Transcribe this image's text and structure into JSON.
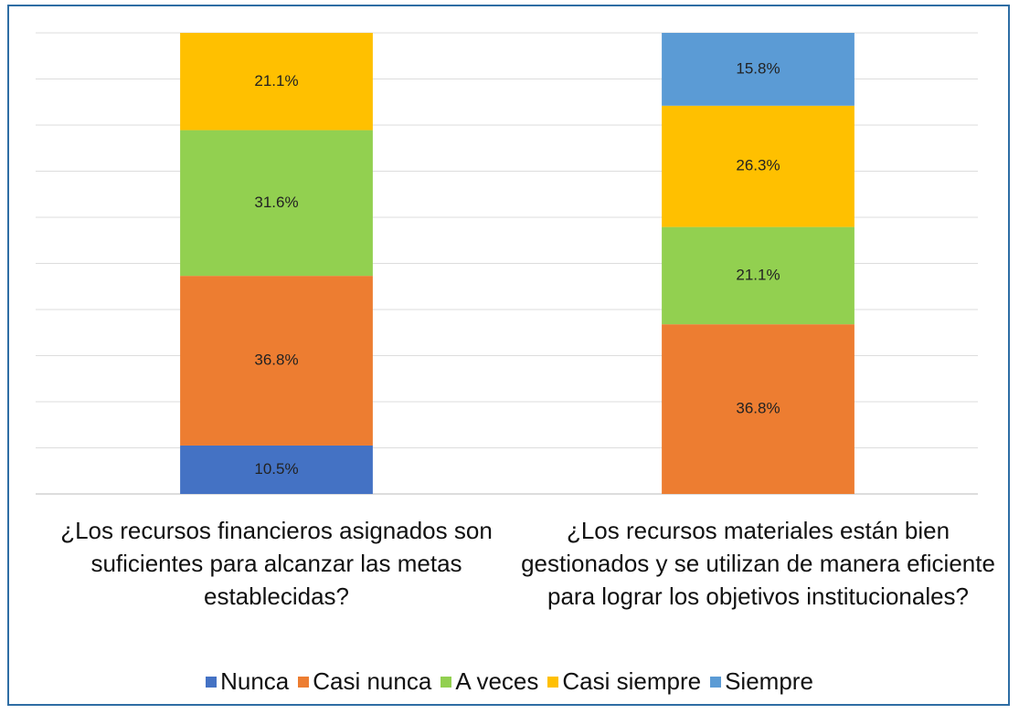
{
  "chart_data": {
    "type": "stacked_bar",
    "categories": [
      "¿Los recursos financieros asignados son suficientes para alcanzar las metas establecidas?",
      "¿Los recursos materiales están bien gestionados y se utilizan de manera eficiente para lograr los objetivos institucionales?"
    ],
    "series": [
      {
        "name": "Nunca",
        "color": "#4472c4",
        "values": [
          10.5,
          0
        ],
        "value_labels": [
          "10.5%",
          null
        ]
      },
      {
        "name": "Casi nunca",
        "color": "#ed7d31",
        "values": [
          36.8,
          36.8
        ],
        "value_labels": [
          "36.8%",
          "36.8%"
        ]
      },
      {
        "name": "A veces",
        "color": "#92d050",
        "values": [
          31.6,
          21.1
        ],
        "value_labels": [
          "31.6%",
          "21.1%"
        ]
      },
      {
        "name": "Casi siempre",
        "color": "#ffc000",
        "values": [
          21.1,
          26.3
        ],
        "value_labels": [
          "21.1%",
          "26.3%"
        ]
      },
      {
        "name": "Siempre",
        "color": "#5b9bd5",
        "values": [
          0,
          15.8
        ],
        "value_labels": [
          null,
          "15.8%"
        ]
      }
    ],
    "ylim": [
      0,
      100
    ],
    "yticks": [
      0,
      10,
      20,
      30,
      40,
      50,
      60,
      70,
      80,
      90,
      100
    ],
    "grid": true,
    "legend": "bottom"
  }
}
